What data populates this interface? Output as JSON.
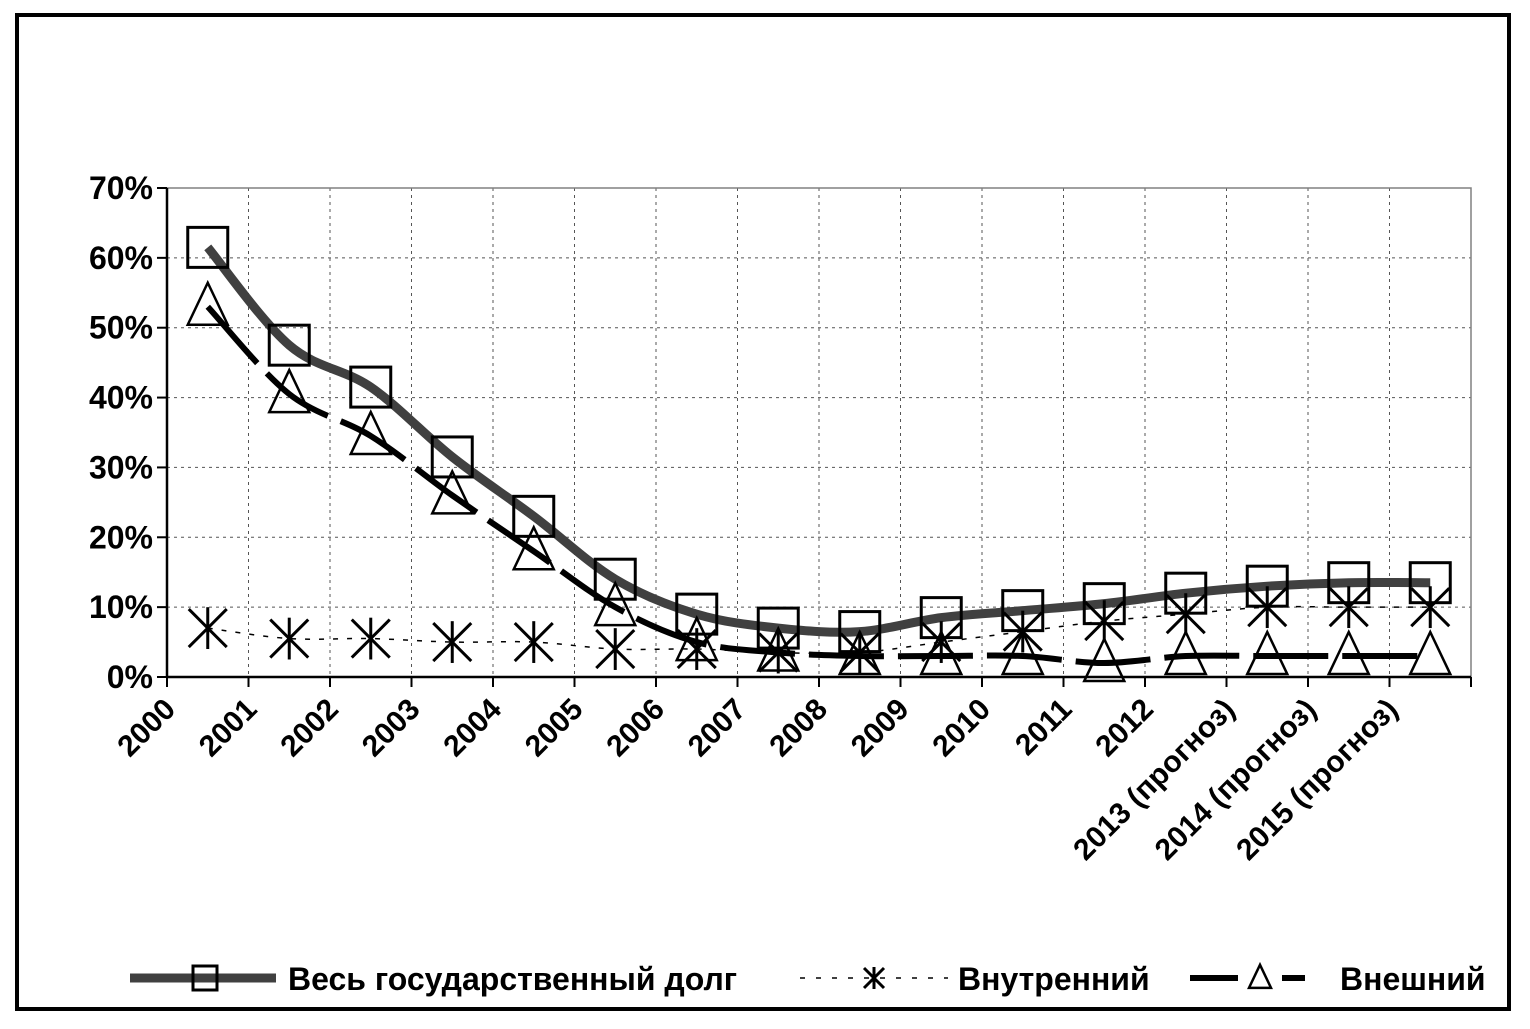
{
  "chart_data": {
    "type": "line",
    "title": "",
    "xlabel": "",
    "ylabel": "",
    "ylim": [
      0,
      70
    ],
    "y_ticks": [
      "0%",
      "10%",
      "20%",
      "30%",
      "40%",
      "50%",
      "60%",
      "70%"
    ],
    "grid": "dashed",
    "legend_position": "bottom",
    "categories": [
      "2000",
      "2001",
      "2002",
      "2003",
      "2004",
      "2005",
      "2006",
      "2007",
      "2008",
      "2009",
      "2010",
      "2011",
      "2012",
      "2013 (прогноз)",
      "2014 (прогноз)",
      "2015 (прогноз)"
    ],
    "series": [
      {
        "name": "Весь государственный долг",
        "values": [
          61.5,
          47.5,
          41.5,
          31.5,
          23,
          14,
          9,
          7,
          6.5,
          8.5,
          9.5,
          10.5,
          12,
          13,
          13.5,
          13.5
        ],
        "color": "#404040",
        "marker": "square"
      },
      {
        "name": "Внутренний",
        "values": [
          7,
          5.5,
          5.5,
          5,
          5,
          4,
          4,
          3.5,
          3.5,
          5,
          6.5,
          8,
          9,
          10,
          10,
          10
        ],
        "color": "#000000",
        "marker": "asterisk"
      },
      {
        "name": "Внешний",
        "values": [
          53,
          40.5,
          34.5,
          26,
          18,
          10,
          5,
          3.5,
          3,
          3,
          3,
          2,
          3,
          3,
          3,
          3
        ],
        "color": "#000000",
        "marker": "triangle"
      }
    ]
  }
}
